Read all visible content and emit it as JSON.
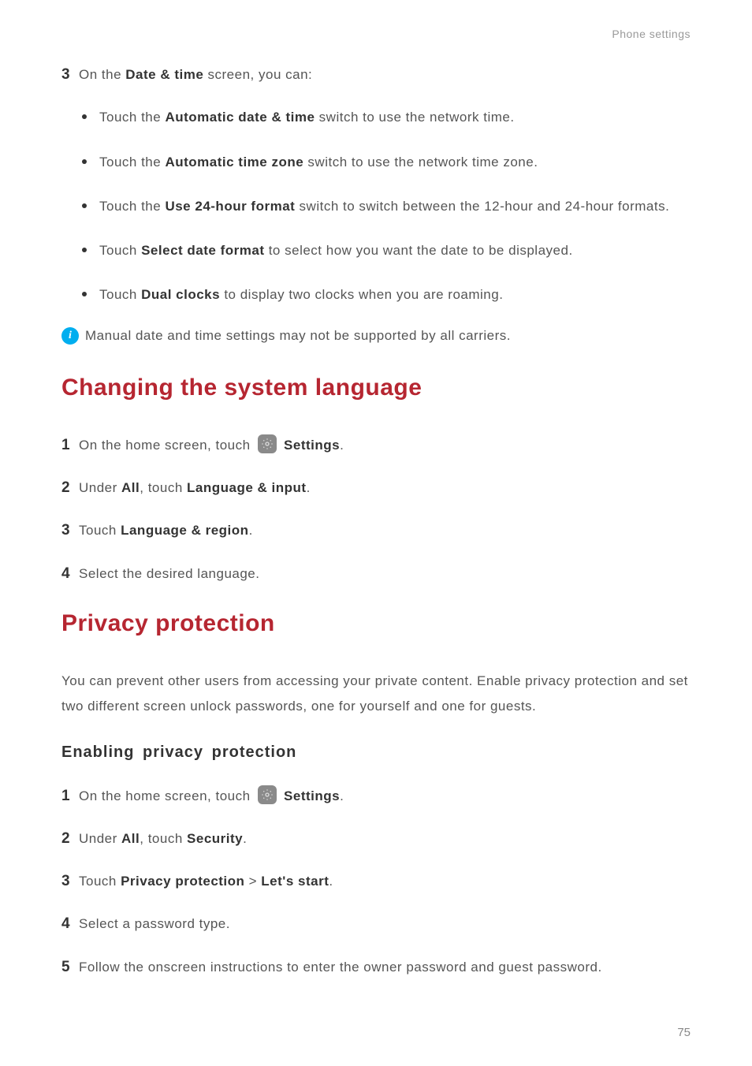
{
  "header": {
    "breadcrumb": "Phone settings"
  },
  "section_a": {
    "step3_num": "3",
    "step3_prefix": "On the ",
    "step3_bold": "Date & time",
    "step3_suffix": " screen, you can:",
    "bullets": [
      {
        "pre": "Touch the ",
        "bold": "Automatic date & time",
        "post": " switch to use the network time."
      },
      {
        "pre": "Touch the ",
        "bold": "Automatic time zone",
        "post": " switch to use the network time zone."
      },
      {
        "pre": "Touch the ",
        "bold": "Use 24-hour format",
        "post": " switch to switch between the 12-hour and 24-hour formats."
      },
      {
        "pre": "Touch ",
        "bold": "Select date format",
        "post": " to select how you want the date to be displayed."
      },
      {
        "pre": "Touch ",
        "bold": "Dual clocks",
        "post": " to display two clocks when you are roaming."
      }
    ],
    "note": "Manual date and time settings may not be supported by all carriers."
  },
  "section_b": {
    "heading": "Changing the system language",
    "steps": [
      {
        "num": "1",
        "parts": [
          {
            "t": "On the home screen, touch "
          },
          {
            "icon": true
          },
          {
            "t": " ",
            "bold": false
          },
          {
            "t": "Settings",
            "bold": true
          },
          {
            "t": "."
          }
        ]
      },
      {
        "num": "2",
        "parts": [
          {
            "t": "Under "
          },
          {
            "t": "All",
            "bold": true
          },
          {
            "t": ", touch "
          },
          {
            "t": "Language & input",
            "bold": true
          },
          {
            "t": "."
          }
        ]
      },
      {
        "num": "3",
        "parts": [
          {
            "t": "Touch "
          },
          {
            "t": "Language & region",
            "bold": true
          },
          {
            "t": "."
          }
        ]
      },
      {
        "num": "4",
        "parts": [
          {
            "t": "Select the desired language."
          }
        ]
      }
    ]
  },
  "section_c": {
    "heading": "Privacy protection",
    "paragraph": "You can prevent other users from accessing your private content. Enable privacy protection and set two different screen unlock passwords, one for yourself and one for guests.",
    "sub_heading": "Enabling privacy protection",
    "steps": [
      {
        "num": "1",
        "parts": [
          {
            "t": "On the home screen, touch "
          },
          {
            "icon": true
          },
          {
            "t": " "
          },
          {
            "t": "Settings",
            "bold": true
          },
          {
            "t": "."
          }
        ]
      },
      {
        "num": "2",
        "parts": [
          {
            "t": "Under "
          },
          {
            "t": "All",
            "bold": true
          },
          {
            "t": ", touch "
          },
          {
            "t": "Security",
            "bold": true
          },
          {
            "t": "."
          }
        ]
      },
      {
        "num": "3",
        "parts": [
          {
            "t": "Touch "
          },
          {
            "t": "Privacy protection",
            "bold": true
          },
          {
            "t": " > "
          },
          {
            "t": "Let's start",
            "bold": true
          },
          {
            "t": "."
          }
        ]
      },
      {
        "num": "4",
        "parts": [
          {
            "t": "Select a password type."
          }
        ]
      },
      {
        "num": "5",
        "parts": [
          {
            "t": "Follow the onscreen instructions to enter the owner password and guest password."
          }
        ]
      }
    ]
  },
  "page_number": "75",
  "colors": {
    "heading": "#b62631",
    "info_icon": "#00aeef",
    "body_text": "#555555",
    "bold_text": "#333333",
    "breadcrumb": "#999999"
  }
}
